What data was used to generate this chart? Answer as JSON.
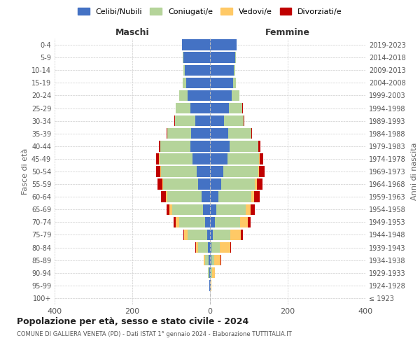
{
  "age_groups": [
    "100+",
    "95-99",
    "90-94",
    "85-89",
    "80-84",
    "75-79",
    "70-74",
    "65-69",
    "60-64",
    "55-59",
    "50-54",
    "45-49",
    "40-44",
    "35-39",
    "30-34",
    "25-29",
    "20-24",
    "15-19",
    "10-14",
    "5-9",
    "0-4"
  ],
  "birth_years": [
    "≤ 1923",
    "1924-1928",
    "1929-1933",
    "1934-1938",
    "1939-1943",
    "1944-1948",
    "1949-1953",
    "1954-1958",
    "1959-1963",
    "1964-1968",
    "1969-1973",
    "1974-1978",
    "1979-1983",
    "1984-1988",
    "1989-1993",
    "1994-1998",
    "1999-2003",
    "2004-2008",
    "2009-2013",
    "2014-2018",
    "2019-2023"
  ],
  "colors": {
    "celibi": "#4472c4",
    "coniugati": "#b5d49a",
    "vedovi": "#ffc966",
    "divorziati": "#c00000"
  },
  "title": "Popolazione per età, sesso e stato civile - 2024",
  "subtitle": "COMUNE DI GALLIERA VENETA (PD) - Dati ISTAT 1° gennaio 2024 - Elaborazione TUTTITALIA.IT",
  "xlabel_left": "Maschi",
  "xlabel_right": "Femmine",
  "ylabel": "Fasce di età",
  "ylabel_right": "Anni di nascita",
  "xlim": 400,
  "legend_labels": [
    "Celibi/Nubili",
    "Coniugati/e",
    "Vedovi/e",
    "Divorziati/e"
  ],
  "m_celibi": [
    0,
    1,
    2,
    3,
    5,
    8,
    12,
    18,
    22,
    30,
    35,
    45,
    50,
    48,
    38,
    50,
    58,
    62,
    65,
    68,
    72
  ],
  "m_coniugati": [
    0,
    1,
    3,
    10,
    25,
    50,
    68,
    80,
    88,
    90,
    92,
    85,
    78,
    62,
    52,
    38,
    22,
    8,
    3,
    2,
    0
  ],
  "m_vedovi": [
    0,
    0,
    1,
    3,
    6,
    8,
    8,
    6,
    4,
    2,
    1,
    1,
    0,
    0,
    0,
    0,
    0,
    0,
    0,
    0,
    0
  ],
  "m_divorziati": [
    0,
    0,
    0,
    0,
    1,
    2,
    5,
    8,
    12,
    14,
    10,
    8,
    4,
    2,
    1,
    1,
    0,
    0,
    0,
    0,
    0
  ],
  "f_nubili": [
    0,
    1,
    2,
    3,
    4,
    7,
    12,
    16,
    22,
    28,
    35,
    45,
    50,
    46,
    36,
    48,
    55,
    60,
    62,
    65,
    68
  ],
  "f_coniugate": [
    0,
    1,
    4,
    8,
    22,
    45,
    65,
    76,
    84,
    88,
    90,
    82,
    74,
    60,
    50,
    35,
    20,
    6,
    3,
    1,
    0
  ],
  "f_vedove": [
    0,
    1,
    6,
    16,
    26,
    28,
    20,
    12,
    8,
    4,
    2,
    1,
    1,
    0,
    0,
    0,
    0,
    0,
    0,
    0,
    0
  ],
  "f_divorziate": [
    0,
    0,
    0,
    1,
    2,
    4,
    8,
    12,
    14,
    16,
    14,
    9,
    5,
    3,
    2,
    1,
    0,
    0,
    0,
    0,
    0
  ]
}
